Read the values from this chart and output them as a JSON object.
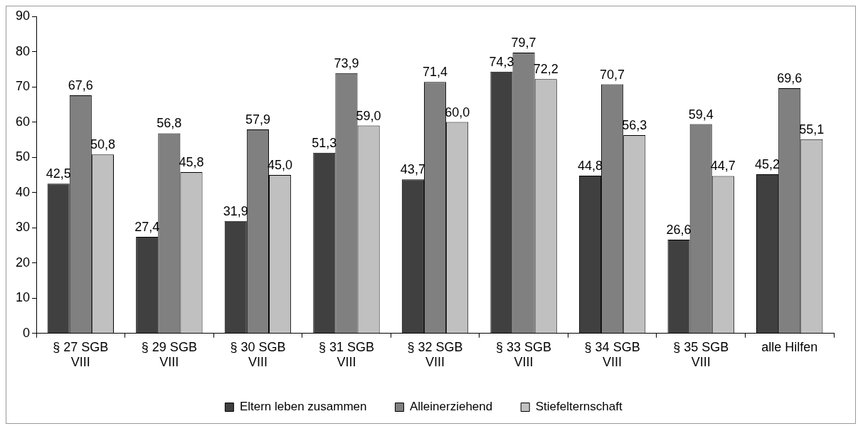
{
  "chart_data": {
    "type": "bar",
    "categories": [
      "§ 27 SGB VIII",
      "§ 29 SGB VIII",
      "§ 30 SGB VIII",
      "§ 31 SGB VIII",
      "§ 32 SGB VIII",
      "§ 33 SGB VIII",
      "§ 34 SGB VIII",
      "§ 35 SGB VIII",
      "alle Hilfen"
    ],
    "series": [
      {
        "name": "Eltern leben zusammen",
        "color": "#404040",
        "values": [
          42.5,
          27.4,
          31.9,
          51.3,
          43.7,
          74.3,
          44.8,
          26.6,
          45.2
        ],
        "value_labels": [
          "42,5",
          "27,4",
          "31,9",
          "51,3",
          "43,7",
          "74,3",
          "44,8",
          "26,6",
          "45,2"
        ]
      },
      {
        "name": "Alleinerziehend",
        "color": "#808080",
        "values": [
          67.6,
          56.8,
          57.9,
          73.9,
          71.4,
          79.7,
          70.7,
          59.4,
          69.6
        ],
        "value_labels": [
          "67,6",
          "56,8",
          "57,9",
          "73,9",
          "71,4",
          "79,7",
          "70,7",
          "59,4",
          "69,6"
        ]
      },
      {
        "name": "Stiefelternschaft",
        "color": "#c0c0c0",
        "values": [
          50.8,
          45.8,
          45.0,
          59.0,
          60.0,
          72.2,
          56.3,
          44.7,
          55.1
        ],
        "value_labels": [
          "50,8",
          "45,8",
          "45,0",
          "59,0",
          "60,0",
          "72,2",
          "56,3",
          "44,7",
          "55,1"
        ]
      }
    ],
    "ylim": [
      0,
      90
    ],
    "yticks": [
      0,
      10,
      20,
      30,
      40,
      50,
      60,
      70,
      80,
      90
    ],
    "grid": false,
    "legend": "bottom"
  }
}
